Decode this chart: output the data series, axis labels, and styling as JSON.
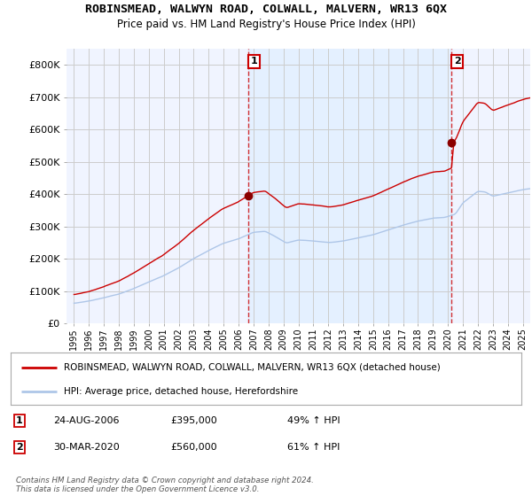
{
  "title": "ROBINSMEAD, WALWYN ROAD, COLWALL, MALVERN, WR13 6QX",
  "subtitle": "Price paid vs. HM Land Registry's House Price Index (HPI)",
  "legend_line1": "ROBINSMEAD, WALWYN ROAD, COLWALL, MALVERN, WR13 6QX (detached house)",
  "legend_line2": "HPI: Average price, detached house, Herefordshire",
  "sale1_date": "24-AUG-2006",
  "sale1_price": "£395,000",
  "sale1_hpi": "49% ↑ HPI",
  "sale2_date": "30-MAR-2020",
  "sale2_price": "£560,000",
  "sale2_hpi": "61% ↑ HPI",
  "footnote": "Contains HM Land Registry data © Crown copyright and database right 2024.\nThis data is licensed under the Open Government Licence v3.0.",
  "hpi_color": "#aec6e8",
  "price_color": "#cc0000",
  "marker_color": "#8b0000",
  "shade_color": "#ddeeff",
  "ylim": [
    0,
    850000
  ],
  "yticks": [
    0,
    100000,
    200000,
    300000,
    400000,
    500000,
    600000,
    700000,
    800000
  ],
  "ytick_labels": [
    "£0",
    "£100K",
    "£200K",
    "£300K",
    "£400K",
    "£500K",
    "£600K",
    "£700K",
    "£800K"
  ],
  "xstart": 1994.5,
  "xend": 2025.5,
  "xtick_years": [
    1995,
    1996,
    1997,
    1998,
    1999,
    2000,
    2001,
    2002,
    2003,
    2004,
    2005,
    2006,
    2007,
    2008,
    2009,
    2010,
    2011,
    2012,
    2013,
    2014,
    2015,
    2016,
    2017,
    2018,
    2019,
    2020,
    2021,
    2022,
    2023,
    2024,
    2025
  ],
  "sale1_x": 2006.65,
  "sale1_y": 395000,
  "sale2_x": 2020.25,
  "sale2_y": 560000,
  "background_color": "#ffffff",
  "grid_color": "#cccccc",
  "plot_bg_color": "#f0f4ff"
}
